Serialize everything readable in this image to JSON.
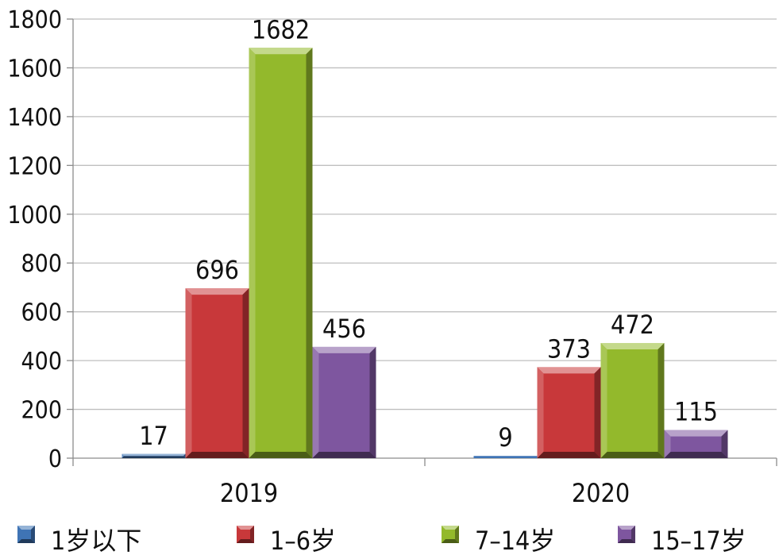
{
  "chart_data": {
    "type": "bar",
    "categories": [
      "2019",
      "2020"
    ],
    "series": [
      {
        "name": "1岁以下",
        "values": [
          17,
          9
        ],
        "color": "#3f74b5"
      },
      {
        "name": "1–6岁",
        "values": [
          696,
          373
        ],
        "color": "#c8383a"
      },
      {
        "name": "7–14岁",
        "values": [
          1682,
          472
        ],
        "color": "#93b92c"
      },
      {
        "name": "15–17岁",
        "values": [
          456,
          115
        ],
        "color": "#7e569f"
      }
    ],
    "y_ticks": [
      "0",
      "200",
      "400",
      "600",
      "800",
      "1000",
      "1200",
      "1400",
      "1600",
      "1800"
    ],
    "ylim": [
      0,
      1800
    ],
    "grid": true,
    "legend_position": "bottom"
  }
}
